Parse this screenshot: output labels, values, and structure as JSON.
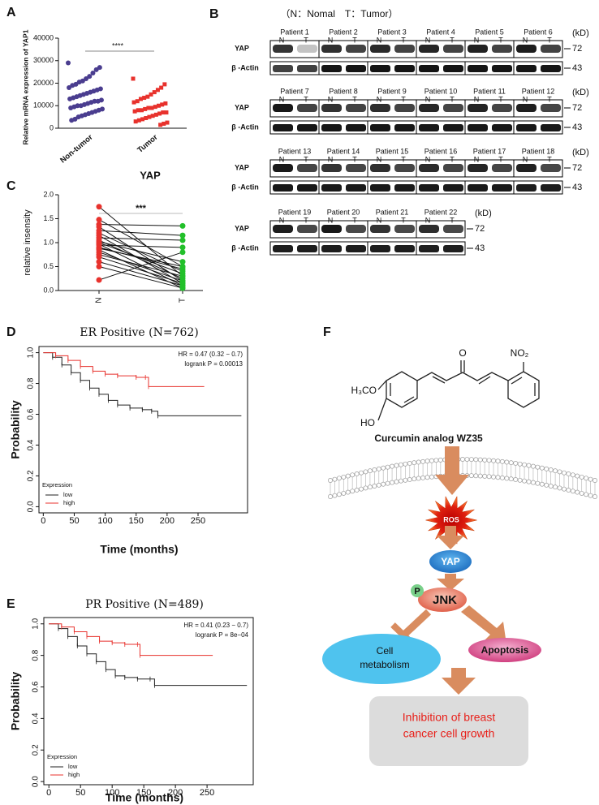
{
  "chart_data": [
    {
      "type": "dot",
      "label": "A",
      "ylabel": "Relative mRNA expression of YAP1",
      "xlabel": "YAP",
      "categories": [
        "Non-tumor",
        "Tumor"
      ],
      "significance": "****",
      "ylim": [
        0,
        40000
      ],
      "yticks": [
        0,
        10000,
        20000,
        30000,
        40000
      ],
      "colors": [
        "#4a3d8f",
        "#e8322d"
      ],
      "values": [
        [
          29000,
          27000,
          26000,
          24500,
          23000,
          22000,
          21000,
          20500,
          19500,
          19000,
          18000,
          17500,
          17000,
          16500,
          16000,
          15500,
          15000,
          14500,
          14000,
          13500,
          13000,
          12500,
          12000,
          12000,
          11500,
          11000,
          10500,
          10000,
          10000,
          9500,
          9000,
          8500,
          8000,
          7500,
          7000,
          6500,
          6000,
          5500,
          5000,
          4000,
          3500
        ],
        [
          22000,
          19500,
          18000,
          17000,
          16000,
          15000,
          14000,
          13500,
          13000,
          12000,
          11500,
          11000,
          10500,
          10000,
          9500,
          9000,
          9000,
          8500,
          8000,
          8000,
          7500,
          7000,
          7000,
          6500,
          6000,
          5500,
          5000,
          4500,
          4000,
          3500,
          3000,
          2500,
          2000,
          1500
        ]
      ]
    },
    {
      "type": "paired",
      "label": "C",
      "ylabel": "relative insensity",
      "categories": [
        "N",
        "T"
      ],
      "significance": "***",
      "ylim": [
        0,
        2
      ],
      "yticks": [
        {
          "value": 0,
          "label": "0.0"
        },
        0.5,
        {
          "value": 1,
          "label": "1.0"
        },
        1.5,
        {
          "value": 2,
          "label": "2.0"
        }
      ],
      "colors": [
        "#e8322d",
        "#22c02a"
      ],
      "values": [
        [
          1.75,
          1.48,
          1.38,
          1.33,
          1.25,
          1.2,
          1.15,
          1.1,
          1.05,
          1.02,
          1.0,
          0.97,
          0.95,
          0.9,
          0.88,
          0.85,
          0.8,
          0.75,
          0.7,
          0.6,
          0.5,
          0.22
        ],
        [
          0.3,
          0.5,
          1.35,
          0.2,
          1.15,
          0.4,
          0.15,
          1.05,
          0.25,
          0.6,
          0.35,
          0.1,
          0.9,
          0.45,
          0.5,
          0.05,
          0.2,
          0.3,
          0.15,
          0.1,
          0.05,
          0.8
        ]
      ]
    },
    {
      "type": "survival",
      "label": "D",
      "title": "ER Positive (N=762)",
      "annotations": [
        "HR = 0.47 (0.32 − 0.7)",
        "logrank P = 0.00013"
      ],
      "xlabel": "Time (months)",
      "ylabel": "Probability",
      "legend_title": "Expression",
      "xlim": [
        -7,
        330
      ],
      "xticks": [
        0,
        50,
        100,
        150,
        200,
        250
      ],
      "ylim": [
        -0.04,
        1.04
      ],
      "yticks": [
        {
          "value": 0,
          "label": "0.0"
        },
        0.2,
        0.4,
        0.6,
        0.8,
        {
          "value": 1,
          "label": "1.0"
        }
      ],
      "series": [
        {
          "name": "low",
          "color": "#222222",
          "x": [
            0,
            15,
            30,
            45,
            60,
            75,
            90,
            105,
            120,
            140,
            160,
            175,
            185,
            320
          ],
          "y": [
            1,
            0.97,
            0.92,
            0.87,
            0.82,
            0.77,
            0.73,
            0.69,
            0.66,
            0.64,
            0.63,
            0.62,
            0.59,
            0.59
          ]
        },
        {
          "name": "high",
          "color": "#e8322d",
          "x": [
            0,
            20,
            40,
            60,
            80,
            100,
            120,
            150,
            165,
            170,
            260
          ],
          "y": [
            1,
            0.98,
            0.95,
            0.91,
            0.88,
            0.86,
            0.85,
            0.84,
            0.84,
            0.78,
            0.78
          ]
        }
      ]
    },
    {
      "type": "survival",
      "label": "E",
      "title": "PR Positive (N=489)",
      "annotations": [
        "HR = 0.41 (0.23 − 0.7)",
        "logrank P = 8e−04"
      ],
      "xlabel": "Time (months)",
      "ylabel": "Probability",
      "legend_title": "Expression",
      "xlim": [
        -8,
        323
      ],
      "xticks": [
        0,
        50,
        100,
        150,
        200,
        250
      ],
      "ylim": [
        -0.02,
        1.04
      ],
      "yticks": [
        {
          "value": 0,
          "label": "0.0"
        },
        0.2,
        0.4,
        0.6,
        0.8,
        {
          "value": 1,
          "label": "1.0"
        }
      ],
      "series": [
        {
          "name": "low",
          "color": "#222222",
          "x": [
            0,
            15,
            30,
            45,
            60,
            75,
            90,
            105,
            120,
            140,
            160,
            167,
            313
          ],
          "y": [
            1,
            0.97,
            0.92,
            0.86,
            0.81,
            0.76,
            0.71,
            0.67,
            0.66,
            0.65,
            0.65,
            0.61,
            0.61
          ]
        },
        {
          "name": "high",
          "color": "#e8322d",
          "x": [
            0,
            20,
            40,
            60,
            80,
            100,
            120,
            140,
            144,
            259
          ],
          "y": [
            1,
            0.98,
            0.95,
            0.92,
            0.89,
            0.88,
            0.87,
            0.87,
            0.8,
            0.8
          ]
        }
      ]
    }
  ],
  "blot": {
    "label": "B",
    "legend": "（N：Nomal　T：Tumor）",
    "unit": "(kD)",
    "lane_labels": [
      "N",
      "T"
    ],
    "proteins": [
      "YAP",
      "β -Actin"
    ],
    "sizes": [
      72,
      43
    ],
    "rows": [
      [
        "Patient 1",
        "Patient 2",
        "Patient 3",
        "Patient 4",
        "Patient 5",
        "Patient 6"
      ],
      [
        "Patient 7",
        "Patient 8",
        "Patient 9",
        "Patient 10",
        "Patient 11",
        "Patient 12"
      ],
      [
        "Patient 13",
        "Patient 14",
        "Patient 15",
        "Patient 16",
        "Patient 17",
        "Patient 18"
      ],
      [
        "Patient 19",
        "Patient 20",
        "Patient 21",
        "Patient 22"
      ]
    ]
  },
  "diagram": {
    "label": "F",
    "molecule": {
      "methoxy": "H₃CO",
      "hydroxy": "HO",
      "carbonyl": "O",
      "nitro": "NO₂",
      "name": "Curcumin analog WZ35"
    },
    "nodes": {
      "ros": "ROS",
      "yap": "YAP",
      "phospho": "P",
      "jnk": "JNK",
      "metabolism": [
        "Cell",
        "metabolism"
      ],
      "apoptosis": "Apoptosis",
      "outcome": [
        "Inhibition of breast",
        "cancer cell growth"
      ]
    }
  }
}
